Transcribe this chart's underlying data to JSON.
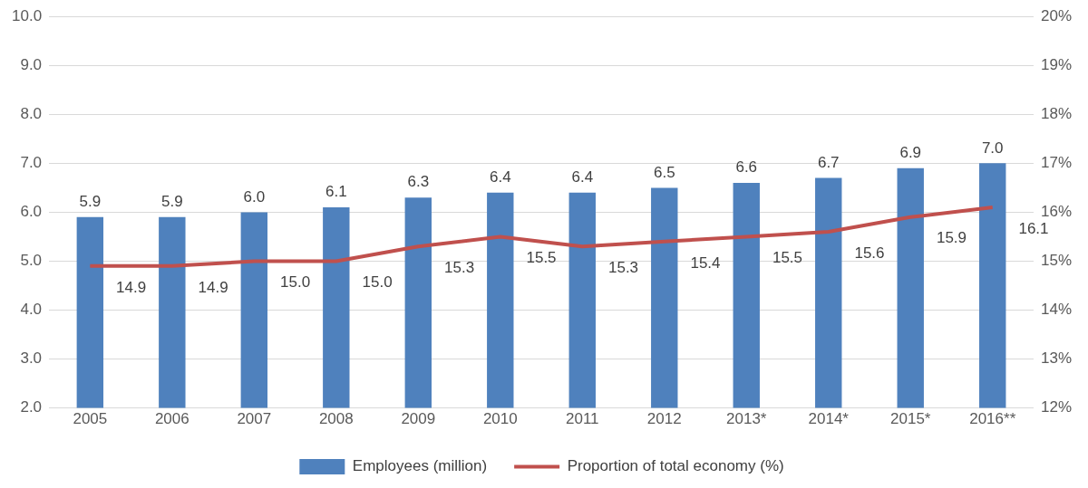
{
  "chart_data": {
    "type": "bar",
    "categories": [
      "2005",
      "2006",
      "2007",
      "2008",
      "2009",
      "2010",
      "2011",
      "2012",
      "2013*",
      "2014*",
      "2015*",
      "2016**"
    ],
    "series": [
      {
        "name": "Employees (million)",
        "color": "#4f81bd",
        "values": [
          5.9,
          5.9,
          6.0,
          6.1,
          6.3,
          6.4,
          6.4,
          6.5,
          6.6,
          6.7,
          6.9,
          7.0
        ],
        "value_labels": [
          "5.9",
          "5.9",
          "6.0",
          "6.1",
          "6.3",
          "6.4",
          "6.4",
          "6.5",
          "6.6",
          "6.7",
          "6.9",
          "7.0"
        ]
      },
      {
        "name": "Proportion of total economy (%)",
        "type": "line",
        "axis": "y2",
        "color": "#c0504d",
        "values": [
          14.9,
          14.9,
          15.0,
          15.0,
          15.3,
          15.5,
          15.3,
          15.4,
          15.5,
          15.6,
          15.9,
          16.1
        ],
        "value_labels": [
          "14.9",
          "14.9",
          "15.0",
          "15.0",
          "15.3",
          "15.5",
          "15.3",
          "15.4",
          "15.5",
          "15.6",
          "15.9",
          "16.1"
        ]
      }
    ],
    "ylim": [
      2,
      10
    ],
    "yticks": [
      {
        "value": 2,
        "label": "2.0"
      },
      {
        "value": 3,
        "label": "3.0"
      },
      {
        "value": 4,
        "label": "4.0"
      },
      {
        "value": 5,
        "label": "5.0"
      },
      {
        "value": 6,
        "label": "6.0"
      },
      {
        "value": 7,
        "label": "7.0"
      },
      {
        "value": 8,
        "label": "8.0"
      },
      {
        "value": 9,
        "label": "9.0"
      },
      {
        "value": 10,
        "label": "10.0"
      }
    ],
    "y2lim": [
      12,
      20
    ],
    "y2ticks": [
      {
        "value": 12,
        "label": "12%"
      },
      {
        "value": 13,
        "label": "13%"
      },
      {
        "value": 14,
        "label": "14%"
      },
      {
        "value": 15,
        "label": "15%"
      },
      {
        "value": 16,
        "label": "16%"
      },
      {
        "value": 17,
        "label": "17%"
      },
      {
        "value": 18,
        "label": "18%"
      },
      {
        "value": 19,
        "label": "19%"
      },
      {
        "value": 20,
        "label": "20%"
      }
    ],
    "grid": "y",
    "legend": "bottom",
    "marker": "none",
    "line_style": "solid"
  }
}
